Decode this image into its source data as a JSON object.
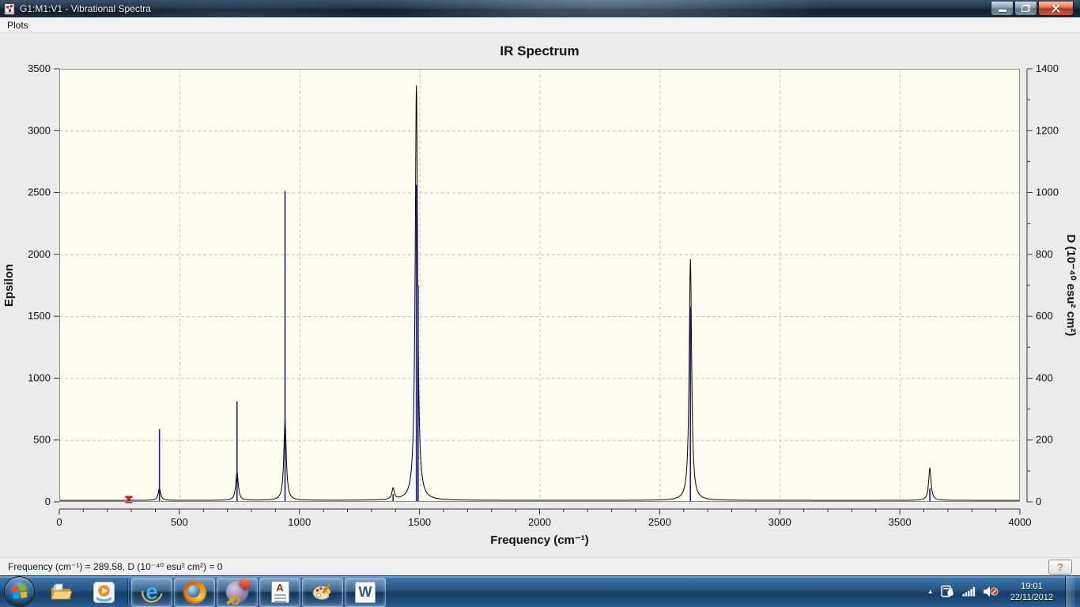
{
  "window": {
    "title": "G1:M1:V1 - Vibrational Spectra"
  },
  "menu": {
    "items": [
      {
        "label": "Plots"
      }
    ]
  },
  "chart_data": {
    "type": "line",
    "title": "IR Spectrum",
    "xlabel": "Frequency (cm⁻¹)",
    "ylabel_left": "Epsilon",
    "ylabel_right": "D (10⁻⁴⁰ esu² cm²)",
    "xlim": [
      0,
      4000
    ],
    "ylim_left": [
      0,
      3500
    ],
    "ylim_right": [
      0,
      1400
    ],
    "x_major_tick_step": 500,
    "x_minor_tick_step": 100,
    "y_left_tick_step": 500,
    "y_right_major_tick_step": 200,
    "y_right_minor_tick_step": 100,
    "grid": "dashed",
    "plot_background": "#fffdef",
    "grid_color": "#c6c6c6",
    "envelope_color": "#000000",
    "stick_color": "#1b1b8e",
    "cursor_color": "#e01212",
    "baseline_epsilon": 12,
    "lorentzian_hwhm": 6,
    "peaks": [
      {
        "frequency": 417,
        "epsilon_peak": 100,
        "d": 235
      },
      {
        "frequency": 740,
        "epsilon_peak": 235,
        "d": 325
      },
      {
        "frequency": 940,
        "epsilon_peak": 655,
        "d": 1005
      },
      {
        "frequency": 1390,
        "epsilon_peak": 90,
        "d": 25
      },
      {
        "frequency": 1487,
        "epsilon_peak": 3355,
        "d": 1025
      },
      {
        "frequency": 1494,
        "epsilon_peak": 0,
        "d": 700
      },
      {
        "frequency": 2628,
        "epsilon_peak": 1950,
        "d": 630
      },
      {
        "frequency": 3625,
        "epsilon_peak": 260,
        "d": 44
      }
    ],
    "cursor": {
      "frequency": 289.58,
      "d": 0
    }
  },
  "status_bar": {
    "text": "Frequency (cm⁻¹) = 289.58, D (10⁻⁴⁰ esu² cm²) = 0",
    "help_label": "?"
  },
  "taskbar": {
    "icons": [
      "start-orb",
      "windows-explorer",
      "windows-media-player",
      "internet-explorer",
      "firefox",
      "gaussview-molecule",
      "text-document",
      "paint",
      "word"
    ],
    "tray_icons": [
      "hidden-icons-chevron",
      "power-plug",
      "network-signal",
      "volume-muted"
    ],
    "tray": {
      "hidden_icons_chevron": "▲",
      "time": "19:01",
      "date": "22/11/2012"
    }
  }
}
